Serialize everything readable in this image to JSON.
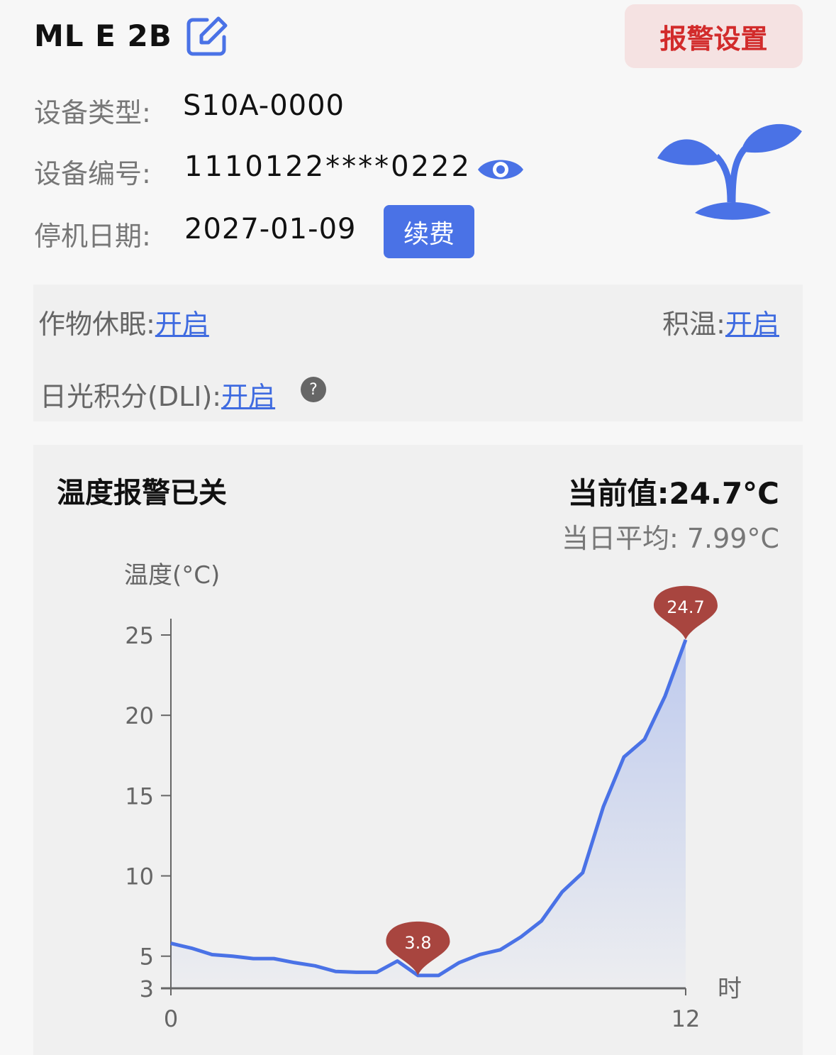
{
  "header": {
    "title": "ML E 2B",
    "edit_icon": "edit-icon",
    "alarm_settings_label": "报警设置"
  },
  "device": {
    "type_label": "设备类型:",
    "type_value": "S10A-0000",
    "id_label": "设备编号:",
    "id_value": "1110122****0222",
    "id_visibility_icon": "eye-icon",
    "stop_label": "停机日期:",
    "stop_value": "2027-01-09",
    "renew_label": "续费",
    "illustration_icon": "sprout-icon"
  },
  "features": {
    "dormancy_label": "作物休眠:",
    "dormancy_value": "开启",
    "accum_label": "积温:",
    "accum_value": "开启",
    "dli_label": "日光积分(DLI):",
    "dli_value": "开启",
    "help_glyph": "?"
  },
  "temperature": {
    "title": "温度报警已关",
    "current": "当前值:24.7°C",
    "average": "当日平均: 7.99°C"
  },
  "colors": {
    "accent": "#4a72e6",
    "alarm": "#d22b2b",
    "marker": "#a8453f"
  },
  "chart_data": {
    "type": "area",
    "ylabel": "温度(°C)",
    "xlabel": "时",
    "xlim": [
      0,
      12
    ],
    "ylim": [
      3,
      25
    ],
    "x_ticks": [
      "0",
      "12"
    ],
    "y_ticks": [
      "3",
      "5",
      "10",
      "15",
      "20",
      "25"
    ],
    "x": [
      0,
      0.48,
      0.96,
      1.44,
      1.92,
      2.4,
      2.88,
      3.36,
      3.84,
      4.32,
      4.8,
      5.28,
      5.76,
      6.24,
      6.72,
      7.2,
      7.68,
      8.16,
      8.64,
      9.12,
      9.6,
      10.08,
      10.56,
      11.04,
      11.52,
      12
    ],
    "values": [
      5.8,
      5.5,
      5.1,
      5.0,
      4.85,
      4.85,
      4.6,
      4.4,
      4.05,
      4.0,
      4.0,
      4.7,
      3.8,
      3.8,
      4.6,
      5.1,
      5.4,
      6.2,
      7.2,
      9.0,
      10.2,
      14.3,
      17.4,
      18.5,
      21.2,
      24.7
    ],
    "markers": [
      {
        "label": "3.8",
        "x": 5.76,
        "y": 3.8
      },
      {
        "label": "24.7",
        "x": 12,
        "y": 24.7
      }
    ],
    "grid": false
  }
}
